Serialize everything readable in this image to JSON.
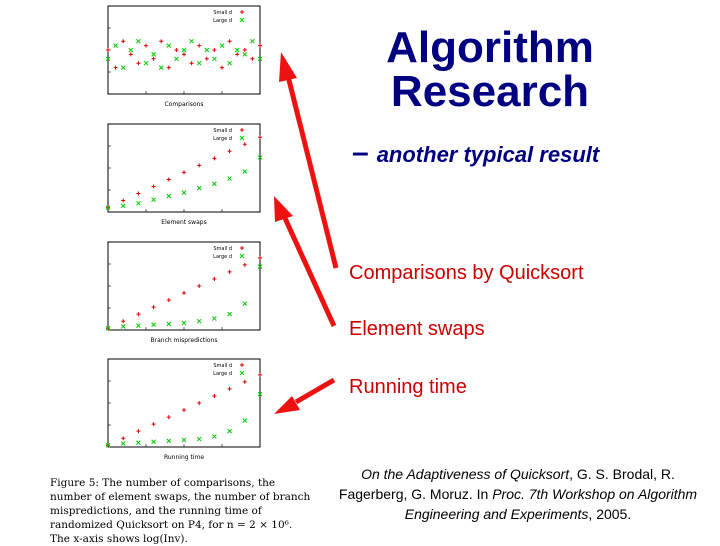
{
  "title": "Algorithm Research",
  "subtitle": "another typical result",
  "subtitle_dash": "–",
  "labels": [
    "Comparisons by Quicksort",
    "Element swaps",
    "Running time"
  ],
  "citation": {
    "title": "On the Adaptiveness of Quicksort",
    "authors": ", G. S. Brodal, R. Fagerberg, G. Moruz. In ",
    "venue": "Proc. 7th Workshop on Algorithm Engineering and Experiments",
    "year": ", 2005."
  },
  "caption": "Figure 5: The number of comparisons, the number of element swaps, the number of branch mispredictions, and the running time of randomized Quicksort on P4, for n = 2 × 10⁶. The x-axis shows log(Inv).",
  "colors": {
    "title": "#000080",
    "label": "#cc0000",
    "arrow": "#ee1111",
    "red_series": "#dd0000",
    "green_series": "#00cc00"
  },
  "chart_data": [
    {
      "type": "scatter",
      "xlabel": "Comparisons",
      "series": [
        {
          "name": "Small d",
          "x": [
            20,
            24,
            28,
            32,
            36,
            40,
            44,
            48,
            52,
            56,
            60,
            64,
            68,
            72,
            76,
            80,
            84,
            88,
            92,
            96,
            100
          ],
          "y": [
            0.5,
            0.3,
            0.6,
            0.45,
            0.35,
            0.55,
            0.4,
            0.6,
            0.3,
            0.5,
            0.45,
            0.35,
            0.55,
            0.4,
            0.5,
            0.3,
            0.6,
            0.45,
            0.5,
            0.4,
            0.55
          ]
        },
        {
          "name": "Large d",
          "x": [
            20,
            24,
            28,
            32,
            36,
            40,
            44,
            48,
            52,
            56,
            60,
            64,
            68,
            72,
            76,
            80,
            84,
            88,
            92,
            96,
            100
          ],
          "y": [
            0.4,
            0.55,
            0.3,
            0.5,
            0.6,
            0.35,
            0.45,
            0.3,
            0.55,
            0.4,
            0.5,
            0.6,
            0.35,
            0.5,
            0.4,
            0.55,
            0.35,
            0.5,
            0.45,
            0.6,
            0.4
          ]
        }
      ]
    },
    {
      "type": "scatter",
      "xlabel": "Element swaps",
      "series": [
        {
          "name": "Small d",
          "x": [
            20,
            28,
            36,
            44,
            52,
            60,
            68,
            76,
            84,
            92,
            100
          ],
          "y": [
            0.05,
            0.13,
            0.21,
            0.29,
            0.37,
            0.45,
            0.53,
            0.61,
            0.69,
            0.77,
            0.85
          ]
        },
        {
          "name": "Large d",
          "x": [
            20,
            28,
            36,
            44,
            52,
            60,
            68,
            76,
            84,
            92,
            100
          ],
          "y": [
            0.05,
            0.07,
            0.1,
            0.14,
            0.18,
            0.22,
            0.27,
            0.32,
            0.38,
            0.46,
            0.62
          ]
        }
      ]
    },
    {
      "type": "scatter",
      "xlabel": "Branch mispredictions",
      "series": [
        {
          "name": "Small d",
          "x": [
            20,
            28,
            36,
            44,
            52,
            60,
            68,
            76,
            84,
            92,
            100
          ],
          "y": [
            0.02,
            0.1,
            0.18,
            0.26,
            0.34,
            0.42,
            0.5,
            0.58,
            0.66,
            0.74,
            0.82
          ]
        },
        {
          "name": "Large d",
          "x": [
            20,
            28,
            36,
            44,
            52,
            60,
            68,
            76,
            84,
            92,
            100
          ],
          "y": [
            0.02,
            0.04,
            0.05,
            0.06,
            0.07,
            0.08,
            0.1,
            0.13,
            0.18,
            0.3,
            0.72
          ]
        }
      ]
    },
    {
      "type": "scatter",
      "xlabel": "Running time",
      "series": [
        {
          "name": "Small d",
          "x": [
            20,
            28,
            36,
            44,
            52,
            60,
            68,
            76,
            84,
            92,
            100
          ],
          "y": [
            0.02,
            0.1,
            0.18,
            0.26,
            0.34,
            0.42,
            0.5,
            0.58,
            0.66,
            0.74,
            0.82
          ]
        },
        {
          "name": "Large d",
          "x": [
            20,
            28,
            36,
            44,
            52,
            60,
            68,
            76,
            84,
            92,
            100
          ],
          "y": [
            0.02,
            0.04,
            0.05,
            0.06,
            0.07,
            0.08,
            0.09,
            0.12,
            0.18,
            0.3,
            0.6
          ]
        }
      ]
    }
  ]
}
